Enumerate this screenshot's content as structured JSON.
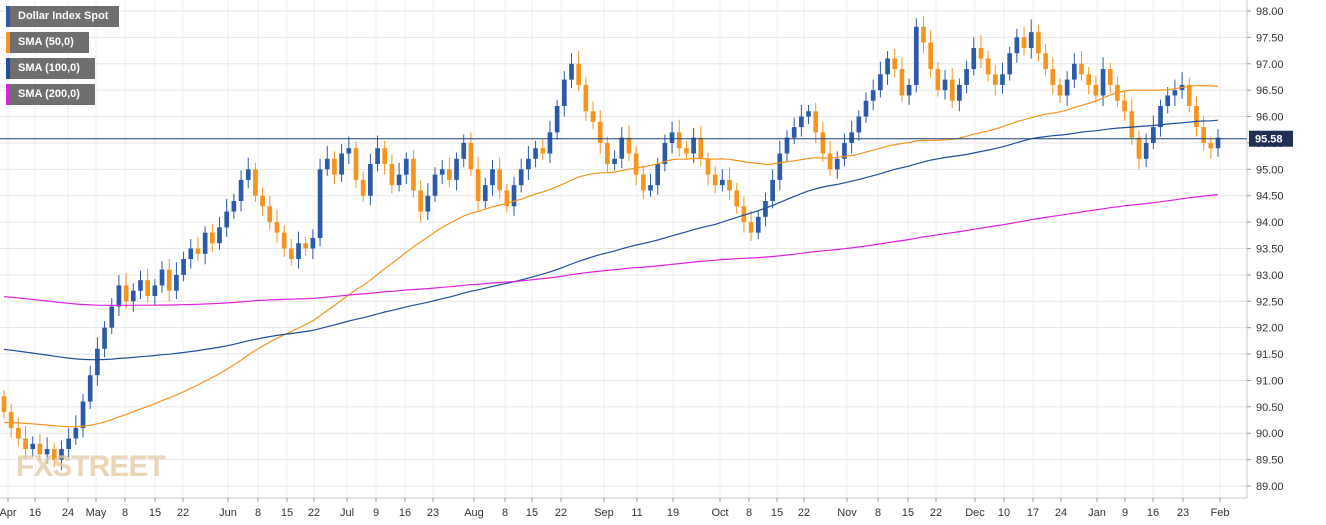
{
  "legend": [
    {
      "label": "Dollar Index Spot",
      "color": "#2b5aa8"
    },
    {
      "label": "SMA (50,0)",
      "color": "#f7941d"
    },
    {
      "label": "SMA (100,0)",
      "color": "#1f4e9b"
    },
    {
      "label": "SMA (200,0)",
      "color": "#e020e0"
    }
  ],
  "watermark": "FXSTREET",
  "current_price": "95.58",
  "chart_data": {
    "type": "candlestick",
    "title": "",
    "ylim": [
      88.75,
      98.2
    ],
    "y_ticks": [
      "98.00",
      "97.50",
      "97.00",
      "96.50",
      "96.00",
      "95.50",
      "95.00",
      "94.50",
      "94.00",
      "93.50",
      "93.00",
      "92.50",
      "92.00",
      "91.50",
      "91.00",
      "90.50",
      "90.00",
      "89.50",
      "89.00"
    ],
    "x_ticks": [
      "Apr",
      "16",
      "24",
      "May",
      "8",
      "15",
      "22",
      "Jun",
      "8",
      "15",
      "22",
      "Jul",
      "9",
      "16",
      "23",
      "Aug",
      "8",
      "15",
      "22",
      "Sep",
      "11",
      "19",
      "Oct",
      "8",
      "15",
      "22",
      "Nov",
      "8",
      "15",
      "22",
      "Dec",
      "10",
      "17",
      "24",
      "Jan",
      "9",
      "16",
      "23",
      "Feb"
    ],
    "grid": true,
    "colors": {
      "up": "#2b5aa8",
      "down": "#f7941d",
      "sma50": "#f7941d",
      "sma100": "#1f4e9b",
      "sma200": "#e020e0",
      "price_line": "#1f3f7a"
    },
    "candles_close": [
      90.4,
      90.1,
      89.9,
      89.7,
      89.8,
      89.6,
      89.7,
      89.5,
      89.7,
      89.9,
      90.1,
      90.6,
      91.1,
      91.6,
      92.0,
      92.4,
      92.8,
      92.5,
      92.7,
      92.9,
      92.6,
      92.8,
      93.1,
      92.7,
      93.0,
      93.3,
      93.5,
      93.4,
      93.8,
      93.6,
      93.9,
      94.2,
      94.4,
      94.8,
      95.0,
      94.5,
      94.3,
      94.0,
      93.8,
      93.5,
      93.3,
      93.6,
      93.5,
      93.7,
      95.0,
      95.2,
      94.9,
      95.3,
      95.4,
      94.8,
      94.5,
      95.1,
      95.4,
      95.1,
      94.7,
      94.9,
      95.2,
      94.6,
      94.2,
      94.5,
      94.9,
      95.0,
      94.8,
      95.2,
      95.5,
      95.0,
      94.4,
      94.7,
      95.0,
      94.6,
      94.3,
      94.7,
      95.0,
      95.2,
      95.4,
      95.3,
      95.7,
      96.2,
      96.7,
      97.0,
      96.6,
      96.1,
      95.9,
      95.5,
      95.1,
      95.2,
      95.6,
      95.3,
      94.9,
      94.6,
      94.7,
      95.1,
      95.5,
      95.7,
      95.4,
      95.3,
      95.6,
      95.2,
      94.9,
      94.7,
      94.8,
      94.6,
      94.3,
      94.0,
      93.8,
      94.1,
      94.4,
      94.8,
      95.3,
      95.6,
      95.8,
      96.0,
      96.1,
      95.7,
      95.3,
      95.0,
      95.2,
      95.5,
      95.7,
      96.0,
      96.3,
      96.5,
      96.8,
      97.1,
      96.9,
      96.4,
      96.6,
      97.7,
      97.4,
      96.9,
      96.5,
      96.7,
      96.3,
      96.6,
      96.9,
      97.3,
      97.1,
      96.8,
      96.6,
      96.8,
      97.2,
      97.5,
      97.3,
      97.6,
      97.2,
      96.9,
      96.6,
      96.4,
      96.7,
      97.0,
      96.8,
      96.6,
      96.4,
      96.9,
      96.6,
      96.3,
      96.1,
      95.6,
      95.2,
      95.5,
      95.8,
      96.2,
      96.4,
      96.5,
      96.6,
      96.2,
      95.8,
      95.5,
      95.4,
      95.6
    ]
  }
}
